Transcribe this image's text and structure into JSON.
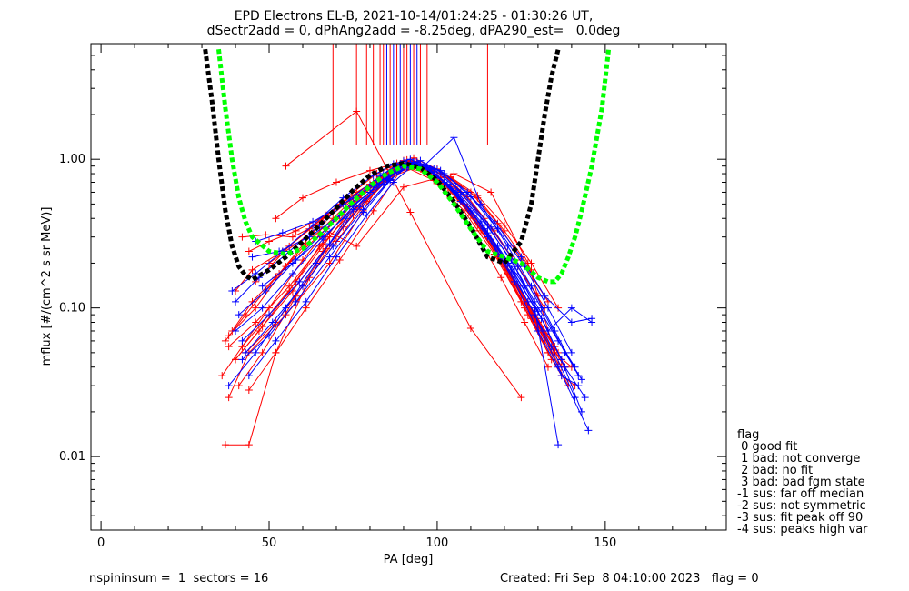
{
  "chart_data": {
    "type": "scatter",
    "title": "EPD Electrons EL-B, 2021-10-14/01:24:25 - 01:30:26 UT,",
    "subtitle": "dSectr2add = 0, dPhAng2add = -8.25deg, dPA290_est=   0.0deg",
    "xlabel": "PA [deg]",
    "ylabel": "mflux [#/(cm^2 s sr MeV)]",
    "xlim": [
      -3,
      186
    ],
    "ylim": [
      0.0032,
      6.0
    ],
    "yscale": "log",
    "x_ticks": [
      "0",
      "50",
      "100",
      "150"
    ],
    "x_tick_values": [
      0,
      50,
      100,
      150
    ],
    "y_ticks": [
      "0.01",
      "0.10",
      "1.00"
    ],
    "y_tick_values": [
      0.01,
      0.1,
      1.0
    ],
    "grid": false,
    "colors": {
      "red": "#ff0000",
      "blue": "#0000ff",
      "black": "#000000",
      "green": "#00ff00"
    },
    "vertical_markers": {
      "red": [
        69,
        76,
        79,
        81,
        83,
        84,
        86,
        88,
        90,
        91,
        93,
        95,
        97,
        115
      ],
      "blue": [
        85,
        87,
        89,
        92,
        94
      ]
    },
    "fits": [
      {
        "color": "black",
        "x": [
          31,
          33,
          35,
          37,
          39,
          41,
          43,
          45,
          50,
          55,
          60,
          65,
          70,
          75,
          80,
          85,
          90,
          95,
          100,
          105,
          110,
          115,
          120,
          125,
          128,
          130,
          132,
          134,
          136
        ],
        "y": [
          5.5,
          2.5,
          1.0,
          0.45,
          0.26,
          0.19,
          0.165,
          0.155,
          0.18,
          0.22,
          0.28,
          0.36,
          0.47,
          0.62,
          0.78,
          0.9,
          0.94,
          0.88,
          0.72,
          0.52,
          0.35,
          0.22,
          0.2,
          0.28,
          0.5,
          1.0,
          2.0,
          3.6,
          5.5
        ]
      },
      {
        "color": "green",
        "x": [
          35,
          37,
          39,
          41,
          43,
          45,
          50,
          55,
          60,
          65,
          70,
          75,
          80,
          85,
          90,
          95,
          100,
          105,
          110,
          115,
          120,
          125,
          130,
          133,
          135,
          137,
          139,
          141,
          143,
          146,
          149,
          151
        ],
        "y": [
          5.5,
          2.2,
          1.0,
          0.55,
          0.38,
          0.3,
          0.24,
          0.23,
          0.25,
          0.31,
          0.4,
          0.52,
          0.66,
          0.8,
          0.9,
          0.86,
          0.7,
          0.5,
          0.34,
          0.24,
          0.22,
          0.2,
          0.16,
          0.15,
          0.15,
          0.17,
          0.22,
          0.3,
          0.45,
          0.9,
          2.2,
          5.5
        ]
      }
    ],
    "series": [
      {
        "color": "red",
        "x": [
          38,
          44,
          55,
          68,
          78,
          84,
          88,
          93,
          98,
          104,
          110,
          118,
          126,
          133,
          137,
          141
        ],
        "y": [
          0.025,
          0.05,
          0.09,
          0.2,
          0.45,
          0.75,
          0.9,
          0.95,
          0.85,
          0.65,
          0.42,
          0.22,
          0.1,
          0.05,
          0.035,
          0.03
        ]
      },
      {
        "color": "red",
        "x": [
          37,
          43,
          52,
          63,
          73,
          82,
          90,
          95,
          102,
          109,
          116,
          124,
          131,
          138
        ],
        "y": [
          0.06,
          0.09,
          0.16,
          0.32,
          0.55,
          0.8,
          0.98,
          0.92,
          0.7,
          0.48,
          0.28,
          0.14,
          0.07,
          0.04
        ]
      },
      {
        "color": "red",
        "x": [
          40,
          47,
          56,
          65,
          74,
          81,
          87,
          92,
          99,
          106,
          113,
          121,
          128,
          134
        ],
        "y": [
          0.045,
          0.07,
          0.13,
          0.26,
          0.48,
          0.7,
          0.88,
          0.96,
          0.8,
          0.55,
          0.33,
          0.17,
          0.085,
          0.045
        ]
      },
      {
        "color": "red",
        "x": [
          36,
          42,
          50,
          60,
          70,
          80,
          86,
          91,
          97,
          104,
          112,
          120,
          127,
          135,
          140
        ],
        "y": [
          0.035,
          0.055,
          0.1,
          0.21,
          0.4,
          0.66,
          0.85,
          0.99,
          0.88,
          0.62,
          0.36,
          0.19,
          0.09,
          0.05,
          0.04
        ]
      },
      {
        "color": "red",
        "x": [
          39,
          45,
          53,
          61,
          69,
          76,
          83,
          89,
          94,
          101,
          108,
          116,
          123,
          130,
          136
        ],
        "y": [
          0.07,
          0.11,
          0.17,
          0.27,
          0.4,
          0.57,
          0.76,
          0.93,
          0.97,
          0.75,
          0.5,
          0.29,
          0.15,
          0.08,
          0.05
        ]
      },
      {
        "color": "red",
        "x": [
          37,
          44,
          52,
          62,
          72,
          81,
          89,
          96,
          103,
          111,
          119,
          126,
          133
        ],
        "y": [
          0.012,
          0.012,
          0.05,
          0.16,
          0.35,
          0.62,
          0.9,
          0.82,
          0.58,
          0.33,
          0.16,
          0.08,
          0.04
        ]
      },
      {
        "color": "red",
        "x": [
          41,
          48,
          58,
          67,
          76,
          84,
          90,
          97,
          105,
          113,
          121,
          129,
          137
        ],
        "y": [
          0.03,
          0.05,
          0.12,
          0.25,
          0.47,
          0.73,
          0.94,
          0.86,
          0.6,
          0.36,
          0.18,
          0.09,
          0.045
        ]
      },
      {
        "color": "red",
        "x": [
          38,
          46,
          55,
          65,
          75,
          82,
          88,
          95,
          102,
          110,
          118,
          125,
          132,
          139
        ],
        "y": [
          0.065,
          0.1,
          0.19,
          0.31,
          0.5,
          0.72,
          0.92,
          0.9,
          0.68,
          0.42,
          0.23,
          0.12,
          0.06,
          0.03
        ]
      },
      {
        "color": "red",
        "x": [
          43,
          52,
          60,
          70,
          79,
          87,
          93,
          100,
          107,
          115,
          123,
          130,
          138
        ],
        "y": [
          0.05,
          0.08,
          0.14,
          0.28,
          0.52,
          0.8,
          0.97,
          0.78,
          0.52,
          0.3,
          0.15,
          0.075,
          0.04
        ]
      },
      {
        "color": "red",
        "x": [
          40,
          48,
          57,
          66,
          75,
          85,
          91,
          98,
          106,
          114,
          122,
          129,
          136
        ],
        "y": [
          0.045,
          0.075,
          0.13,
          0.24,
          0.42,
          0.72,
          0.93,
          0.84,
          0.57,
          0.34,
          0.17,
          0.085,
          0.042
        ]
      },
      {
        "color": "red",
        "x": [
          42,
          50,
          58,
          68,
          77,
          86,
          92,
          99,
          107,
          115,
          122,
          130,
          137
        ],
        "y": [
          0.055,
          0.09,
          0.15,
          0.3,
          0.55,
          0.82,
          0.98,
          0.8,
          0.53,
          0.31,
          0.16,
          0.08,
          0.04
        ]
      },
      {
        "color": "red",
        "x": [
          44,
          52,
          61,
          71,
          81,
          90,
          99,
          108,
          117,
          125,
          133
        ],
        "y": [
          0.028,
          0.05,
          0.1,
          0.21,
          0.45,
          0.9,
          0.72,
          0.45,
          0.23,
          0.11,
          0.05
        ]
      },
      {
        "color": "red",
        "x": [
          38,
          46,
          56,
          66,
          76,
          86,
          95,
          103,
          111,
          119,
          127,
          135
        ],
        "y": [
          0.055,
          0.08,
          0.14,
          0.27,
          0.48,
          0.78,
          0.92,
          0.68,
          0.42,
          0.22,
          0.11,
          0.055
        ]
      },
      {
        "color": "red",
        "x": [
          40,
          45,
          54,
          62,
          71,
          80,
          88,
          93,
          100,
          109,
          117,
          124,
          132
        ],
        "y": [
          0.13,
          0.18,
          0.24,
          0.34,
          0.5,
          0.68,
          0.88,
          1.02,
          0.86,
          0.56,
          0.33,
          0.19,
          0.1
        ]
      },
      {
        "color": "red",
        "x": [
          42,
          49,
          57,
          66,
          75,
          84,
          93,
          101,
          110,
          118,
          125,
          133
        ],
        "y": [
          0.3,
          0.31,
          0.3,
          0.38,
          0.55,
          0.74,
          0.94,
          0.8,
          0.6,
          0.37,
          0.21,
          0.11
        ]
      },
      {
        "color": "red",
        "x": [
          44,
          50,
          58,
          67,
          77,
          86,
          95,
          104,
          112,
          120,
          128,
          136
        ],
        "y": [
          0.24,
          0.28,
          0.33,
          0.42,
          0.58,
          0.76,
          0.9,
          0.76,
          0.57,
          0.36,
          0.2,
          0.1
        ]
      },
      {
        "color": "red",
        "x": [
          55,
          76,
          92,
          110,
          125
        ],
        "y": [
          0.9,
          2.1,
          0.44,
          0.073,
          0.025
        ]
      },
      {
        "color": "red",
        "x": [
          50,
          65,
          76,
          90,
          105,
          116,
          127,
          135
        ],
        "y": [
          0.2,
          0.35,
          0.26,
          0.65,
          0.8,
          0.6,
          0.2,
          0.05
        ]
      },
      {
        "color": "red",
        "x": [
          46,
          56,
          66,
          76,
          86,
          96,
          106,
          114,
          122,
          130
        ],
        "y": [
          0.15,
          0.26,
          0.4,
          0.6,
          0.82,
          0.88,
          0.62,
          0.4,
          0.22,
          0.12
        ]
      },
      {
        "color": "red",
        "x": [
          52,
          60,
          70,
          80,
          88,
          96,
          104,
          112,
          120,
          128
        ],
        "y": [
          0.4,
          0.55,
          0.7,
          0.84,
          0.94,
          0.9,
          0.75,
          0.55,
          0.33,
          0.18
        ]
      },
      {
        "color": "blue",
        "x": [
          38,
          46,
          55,
          64,
          73,
          82,
          88,
          93,
          100,
          107,
          115,
          123,
          130,
          137,
          142
        ],
        "y": [
          0.03,
          0.05,
          0.1,
          0.2,
          0.4,
          0.68,
          0.88,
          0.96,
          0.78,
          0.52,
          0.3,
          0.15,
          0.07,
          0.035,
          0.03
        ]
      },
      {
        "color": "blue",
        "x": [
          40,
          48,
          57,
          66,
          75,
          84,
          90,
          96,
          103,
          111,
          119,
          127,
          134,
          141
        ],
        "y": [
          0.07,
          0.1,
          0.17,
          0.29,
          0.48,
          0.73,
          0.92,
          0.9,
          0.68,
          0.42,
          0.22,
          0.11,
          0.055,
          0.025
        ]
      },
      {
        "color": "blue",
        "x": [
          39,
          46,
          54,
          63,
          72,
          81,
          87,
          92,
          98,
          106,
          114,
          122,
          129,
          136,
          145
        ],
        "y": [
          0.13,
          0.17,
          0.24,
          0.36,
          0.55,
          0.78,
          0.93,
          1.0,
          0.85,
          0.58,
          0.34,
          0.18,
          0.09,
          0.04,
          0.015
        ]
      },
      {
        "color": "blue",
        "x": [
          42,
          50,
          59,
          68,
          77,
          85,
          91,
          97,
          105,
          113,
          121,
          129,
          136
        ],
        "y": [
          0.06,
          0.09,
          0.15,
          0.27,
          0.48,
          0.74,
          0.94,
          0.88,
          0.62,
          0.38,
          0.2,
          0.1,
          0.012
        ]
      },
      {
        "color": "blue",
        "x": [
          41,
          49,
          58,
          67,
          76,
          84,
          90,
          95,
          102,
          110,
          118,
          126,
          133,
          140,
          146
        ],
        "y": [
          0.09,
          0.13,
          0.21,
          0.34,
          0.55,
          0.8,
          0.97,
          0.92,
          0.7,
          0.45,
          0.26,
          0.14,
          0.07,
          0.1,
          0.08
        ]
      },
      {
        "color": "blue",
        "x": [
          43,
          51,
          60,
          69,
          78,
          86,
          93,
          100,
          108,
          116,
          124,
          131,
          138,
          143
        ],
        "y": [
          0.05,
          0.08,
          0.14,
          0.26,
          0.46,
          0.73,
          0.95,
          0.85,
          0.58,
          0.35,
          0.19,
          0.1,
          0.05,
          0.033
        ]
      },
      {
        "color": "blue",
        "x": [
          45,
          53,
          62,
          71,
          80,
          88,
          94,
          101,
          109,
          117,
          125,
          132,
          140,
          146
        ],
        "y": [
          0.22,
          0.24,
          0.3,
          0.42,
          0.6,
          0.82,
          0.96,
          0.84,
          0.6,
          0.38,
          0.22,
          0.12,
          0.08,
          0.085
        ]
      },
      {
        "color": "blue",
        "x": [
          40,
          47,
          56,
          65,
          74,
          83,
          89,
          96,
          105,
          113,
          121,
          128,
          135,
          142
        ],
        "y": [
          0.11,
          0.16,
          0.24,
          0.36,
          0.54,
          0.77,
          0.93,
          0.9,
          1.4,
          0.5,
          0.26,
          0.14,
          0.07,
          0.035
        ]
      },
      {
        "color": "blue",
        "x": [
          44,
          52,
          61,
          70,
          79,
          87,
          93,
          99,
          107,
          115,
          123,
          130,
          137,
          143
        ],
        "y": [
          0.035,
          0.06,
          0.11,
          0.22,
          0.42,
          0.7,
          0.92,
          0.86,
          0.6,
          0.36,
          0.19,
          0.095,
          0.045,
          0.02
        ]
      },
      {
        "color": "blue",
        "x": [
          46,
          54,
          63,
          72,
          81,
          89,
          95,
          102,
          110,
          118,
          126,
          133,
          140
        ],
        "y": [
          0.28,
          0.32,
          0.38,
          0.5,
          0.66,
          0.85,
          0.98,
          0.8,
          0.56,
          0.34,
          0.19,
          0.1,
          0.05
        ]
      },
      {
        "color": "blue",
        "x": [
          48,
          57,
          66,
          75,
          84,
          91,
          98,
          106,
          114,
          122,
          129,
          136,
          141
        ],
        "y": [
          0.14,
          0.2,
          0.3,
          0.46,
          0.68,
          0.88,
          0.85,
          0.6,
          0.38,
          0.21,
          0.11,
          0.06,
          0.04
        ]
      },
      {
        "color": "blue",
        "x": [
          42,
          50,
          58,
          68,
          78,
          86,
          92,
          99,
          107,
          115,
          123,
          131,
          138,
          144
        ],
        "y": [
          0.045,
          0.065,
          0.11,
          0.22,
          0.44,
          0.72,
          0.95,
          0.82,
          0.54,
          0.32,
          0.17,
          0.085,
          0.04,
          0.025
        ]
      }
    ]
  },
  "legend": {
    "title": "flag",
    "items": [
      " 0 good fit",
      " 1 bad: not converge",
      " 2 bad: no fit",
      " 3 bad: bad fgm state",
      "-1 sus: far off median",
      "-2 sus: not symmetric",
      "-3 sus: fit peak off 90",
      "-4 sus: peaks high var"
    ]
  },
  "footer": {
    "left": "nspininsum =  1  sectors = 16",
    "right": "Created: Fri Sep  8 04:10:00 2023   flag = 0"
  }
}
